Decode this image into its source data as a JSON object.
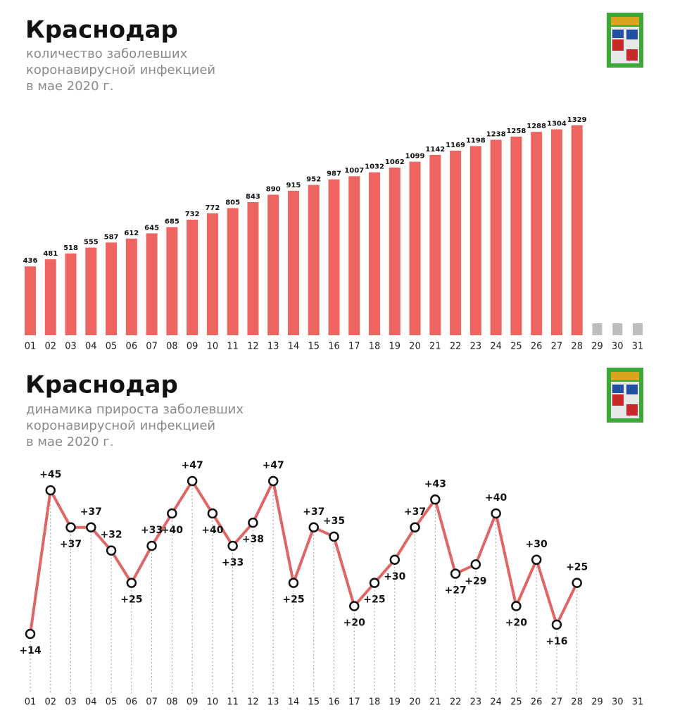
{
  "chart_data": [
    {
      "type": "bar",
      "title": "Краснодар",
      "subtitle": [
        "количество заболевших",
        "коронавирусной инфекцией",
        "в мае 2020 г."
      ],
      "categories": [
        "01",
        "02",
        "03",
        "04",
        "05",
        "06",
        "07",
        "08",
        "09",
        "10",
        "11",
        "12",
        "13",
        "14",
        "15",
        "16",
        "17",
        "18",
        "19",
        "20",
        "21",
        "22",
        "23",
        "24",
        "25",
        "26",
        "27",
        "28",
        "29",
        "30",
        "31"
      ],
      "values": [
        436,
        481,
        518,
        555,
        587,
        612,
        645,
        685,
        732,
        772,
        805,
        843,
        890,
        915,
        952,
        987,
        1007,
        1032,
        1062,
        1099,
        1142,
        1169,
        1198,
        1238,
        1258,
        1288,
        1304,
        1329,
        null,
        null,
        null
      ],
      "color": "#ee6461",
      "empty_color": "#bdbdbd"
    },
    {
      "type": "line",
      "title": "Краснодар",
      "subtitle": [
        "динамика прироста заболевших",
        "коронавирусной инфекцией",
        "в мае 2020 г."
      ],
      "categories": [
        "01",
        "02",
        "03",
        "04",
        "05",
        "06",
        "07",
        "08",
        "09",
        "10",
        "11",
        "12",
        "13",
        "14",
        "15",
        "16",
        "17",
        "18",
        "19",
        "20",
        "21",
        "22",
        "23",
        "24",
        "25",
        "26",
        "27",
        "28",
        "29",
        "30",
        "31"
      ],
      "values": [
        14,
        45,
        37,
        37,
        32,
        25,
        33,
        40,
        47,
        40,
        33,
        38,
        47,
        25,
        37,
        35,
        20,
        25,
        30,
        37,
        43,
        27,
        29,
        40,
        20,
        30,
        16,
        25,
        null,
        null,
        null
      ],
      "value_labels": [
        "+14",
        "+45",
        "+37",
        "+37",
        "+32",
        "+25",
        "+33",
        "+40",
        "+47",
        "+40",
        "+33",
        "+38",
        "+47",
        "+25",
        "+37",
        "+35",
        "+20",
        "+25",
        "+30",
        "+37",
        "+43",
        "+27",
        "+29",
        "+40",
        "+20",
        "+30",
        "+16",
        "+25",
        null,
        null,
        null
      ],
      "color": "#e06666"
    }
  ]
}
